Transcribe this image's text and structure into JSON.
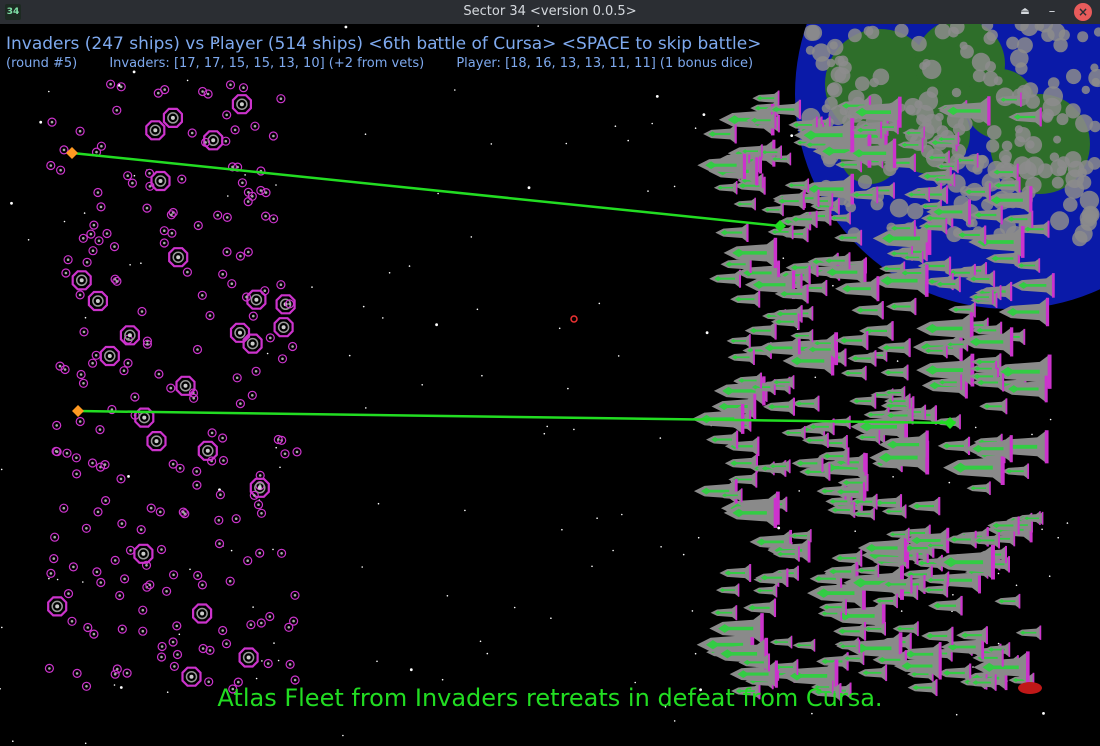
{
  "window": {
    "app_icon": "34",
    "title": "Sector 34   <version 0.0.5>",
    "buttons": [
      "maximize-icon",
      "minimize-icon",
      "close-icon"
    ],
    "close_color": "#e85b5b"
  },
  "hud": {
    "headline": "Invaders (247 ships) vs Player (514 ships) <6th battle of Cursa> <SPACE to skip battle>",
    "round": "(round #5)",
    "invader_dice": "Invaders: [17, 17, 15, 15, 13, 10] (+2 from vets)",
    "player_dice": "Player: [18, 16, 13, 13, 11, 11] (1 bonus dice)",
    "text_color": "#7ea9ee"
  },
  "message": {
    "text": "Atlas Fleet from Invaders retreats in defeat from Cursa.",
    "color": "#22dd22"
  },
  "battle": {
    "invaders": {
      "ships": 247,
      "color": "#cc33cc"
    },
    "player": {
      "ships": 514,
      "hull_color": "#8a8a8a",
      "accent_color": "#33cc44",
      "fin_color": "#cc33cc"
    },
    "laser_color": "#22dd22",
    "shot_origin_color": "#ff9922",
    "planet": {
      "ocean_color": "#0a1aa8",
      "land_color": "#2e6e2a",
      "cloud_color": "#8c8c8c"
    }
  }
}
